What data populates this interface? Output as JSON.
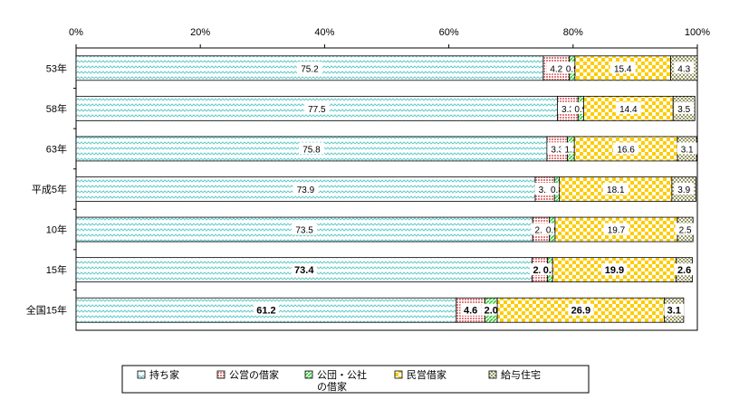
{
  "chart_data": {
    "type": "bar",
    "orientation": "horizontal",
    "stacked": "percent",
    "title": "",
    "xlabel": "",
    "ylabel": "",
    "xlim": [
      0,
      100
    ],
    "x_ticks": [
      "0%",
      "20%",
      "40%",
      "60%",
      "80%",
      "100%"
    ],
    "grid": false,
    "legend_position": "bottom",
    "categories": [
      "53年",
      "58年",
      "63年",
      "平成5年",
      "10年",
      "15年",
      "全国15年"
    ],
    "bold_categories": [
      "15年",
      "全国15年"
    ],
    "series": [
      {
        "name": "持ち家",
        "color": "#66cccc",
        "pattern": "wave",
        "values": [
          75.2,
          77.5,
          75.8,
          73.9,
          73.5,
          73.4,
          61.2
        ],
        "labels": [
          "75.2",
          "77.5",
          "75.8",
          "73.9",
          "73.5",
          "73.4",
          "61.2"
        ]
      },
      {
        "name": "公営の借家",
        "color": "#e08080",
        "pattern": "dots",
        "values": [
          4.2,
          3.3,
          3.3,
          3.1,
          2.7,
          2.5,
          4.6
        ],
        "labels": [
          "4.2",
          "3.3",
          "3.3",
          "3.1",
          "2.7",
          "2.5",
          "4.6"
        ]
      },
      {
        "name": "公団・公社の借家",
        "color": "#33cc33",
        "pattern": "diag",
        "values": [
          0.9,
          0.9,
          1.1,
          0.8,
          0.9,
          0.8,
          2.0
        ],
        "labels": [
          "0.9",
          "0.9",
          "1.1",
          "0.8",
          "0.9",
          "0.8",
          "2.0"
        ]
      },
      {
        "name": "民営借家",
        "color": "#ffcc00",
        "pattern": "check",
        "values": [
          15.4,
          14.4,
          16.6,
          18.1,
          19.7,
          19.9,
          26.9
        ],
        "labels": [
          "15.4",
          "14.4",
          "16.6",
          "18.1",
          "19.7",
          "19.9",
          "26.9"
        ]
      },
      {
        "name": "給与住宅",
        "color": "#999966",
        "pattern": "cross",
        "values": [
          4.3,
          3.5,
          3.1,
          3.9,
          2.5,
          2.6,
          3.1
        ],
        "labels": [
          "4.3",
          "3.5",
          "3.1",
          "3.9",
          "2.5",
          "2.6",
          "3.1"
        ]
      }
    ],
    "legend": {
      "entries": [
        "持ち家",
        "公営の借家",
        "公団・公社",
        "民営借家",
        "給与住宅"
      ],
      "entry_extra_line": {
        "2": "の借家"
      }
    }
  }
}
